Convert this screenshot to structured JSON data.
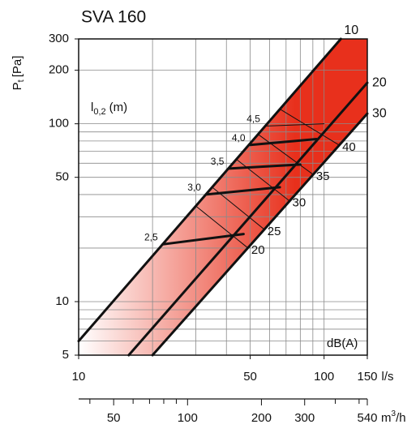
{
  "chart_data": {
    "type": "line",
    "title": "SVA 160",
    "y_label": {
      "main": "P",
      "sub": "t",
      "unit": "[Pa]"
    },
    "x_label": "l/s",
    "x2_label": {
      "main": "m",
      "sup": "3",
      "unit": "/h"
    },
    "throw_title": {
      "main": "l",
      "sub": "0,2",
      "unit": "(m)"
    },
    "sound_title": "dB(A)",
    "log_x": true,
    "log_y": true,
    "xlim": [
      10,
      150
    ],
    "ylim": [
      5,
      300
    ],
    "xticks": [
      10,
      50,
      100,
      150
    ],
    "xgrid": [
      10,
      20,
      30,
      40,
      50,
      60,
      70,
      80,
      90,
      100,
      150
    ],
    "yticks": [
      5,
      10,
      50,
      100,
      200,
      300
    ],
    "ygrid": [
      5,
      6,
      7,
      8,
      9,
      10,
      20,
      30,
      40,
      50,
      60,
      70,
      80,
      90,
      100,
      200,
      300
    ],
    "x2lim": [
      36,
      540
    ],
    "x2ticks": [
      50,
      100,
      200,
      300,
      540
    ],
    "x2minor": [
      40,
      60,
      70,
      80,
      90,
      400,
      500
    ],
    "fill_colors": [
      "#ffffff",
      "#e8301c"
    ],
    "series": [
      {
        "name": "10",
        "color": "#111111",
        "x": [
          10,
          117
        ],
        "values": [
          6,
          300
        ]
      },
      {
        "name": "20",
        "color": "#111111",
        "x": [
          16,
          150
        ],
        "values": [
          5,
          170
        ]
      },
      {
        "name": "30",
        "color": "#111111",
        "x": [
          20,
          150
        ],
        "values": [
          5,
          114
        ]
      }
    ],
    "throw_lines": [
      {
        "label": "2,5",
        "x": [
          22,
          47
        ],
        "values": [
          21,
          24
        ]
      },
      {
        "label": "3,0",
        "x": [
          33,
          66
        ],
        "values": [
          40,
          44
        ]
      },
      {
        "label": "3,5",
        "x": [
          41,
          80
        ],
        "values": [
          56,
          59
        ]
      },
      {
        "label": "4,0",
        "x": [
          50,
          93
        ],
        "values": [
          76,
          82
        ]
      },
      {
        "label": "4,5",
        "x": [
          57.5,
          100
        ],
        "values": [
          97,
          100
        ]
      }
    ],
    "sound_lines": [
      {
        "label": "20",
        "x": [
          30,
          49
        ],
        "values": [
          34.5,
          20
        ]
      },
      {
        "label": "25",
        "x": [
          35,
          57
        ],
        "values": [
          44,
          25.5
        ]
      },
      {
        "label": "30",
        "x": [
          44,
          72
        ],
        "values": [
          63,
          37
        ]
      },
      {
        "label": "35",
        "x": [
          54,
          90
        ],
        "values": [
          87,
          52
        ]
      },
      {
        "label": "40",
        "x": [
          66,
          115
        ],
        "values": [
          121,
          76
        ]
      }
    ]
  }
}
